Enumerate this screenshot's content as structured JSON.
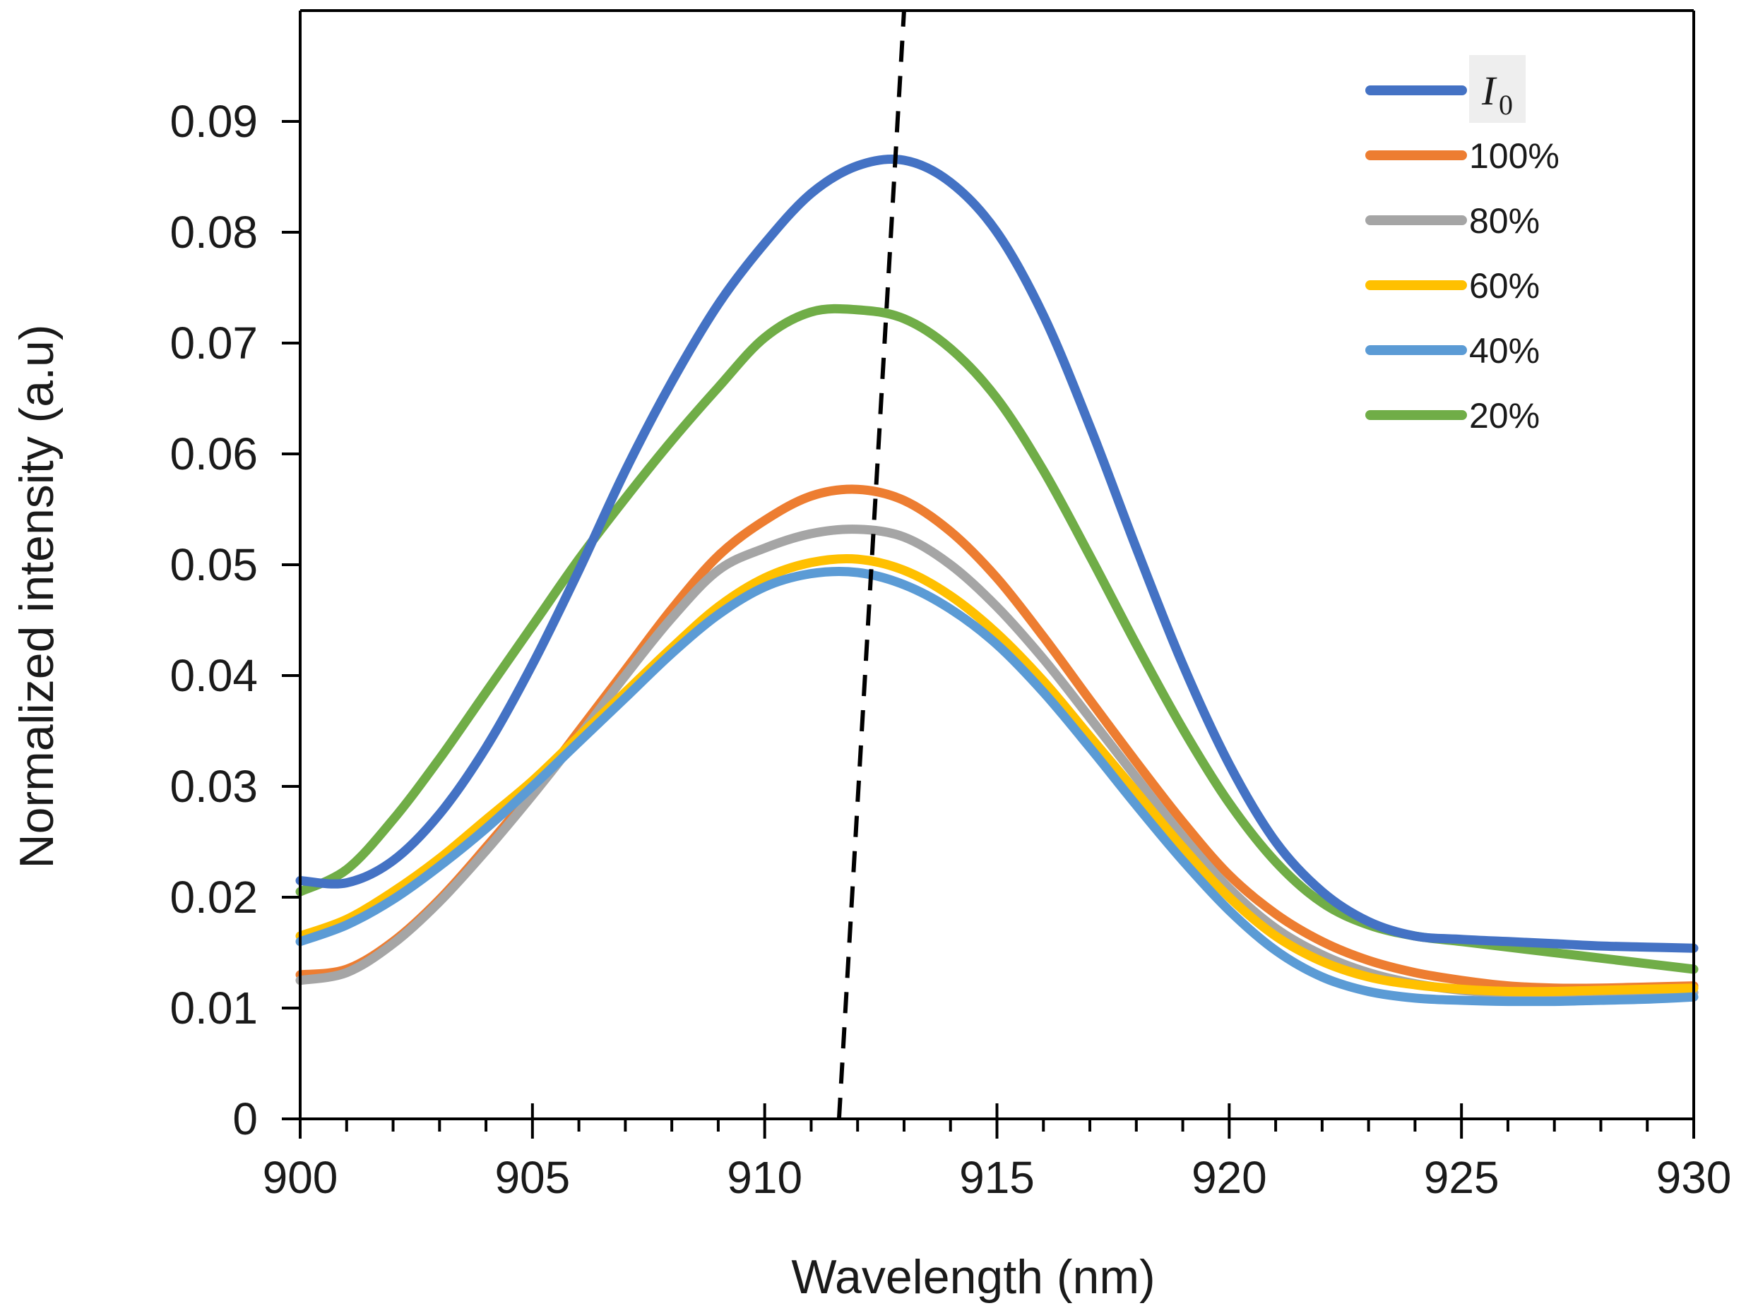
{
  "chart_data": {
    "type": "line",
    "title": "",
    "xlabel": "Wavelength (nm)",
    "ylabel": "Normalized intensity (a.u)",
    "xlim": [
      900,
      930
    ],
    "ylim": [
      0,
      0.1
    ],
    "x_ticks": [
      "900",
      "905",
      "910",
      "915",
      "920",
      "925",
      "930"
    ],
    "y_ticks": [
      "0",
      "0.01",
      "0.02",
      "0.03",
      "0.04",
      "0.05",
      "0.06",
      "0.07",
      "0.08",
      "0.09"
    ],
    "grid": false,
    "legend_position": "top-right",
    "series": [
      {
        "name": "I0",
        "label_main": "I",
        "label_sub": "0",
        "color": "#4472C4",
        "x": [
          900,
          901,
          902,
          903,
          904,
          905,
          906,
          907,
          908,
          909,
          910,
          911,
          912,
          913,
          914,
          915,
          916,
          917,
          918,
          919,
          920,
          921,
          922,
          923,
          924,
          925,
          926,
          927,
          928,
          929,
          930
        ],
        "y": [
          0.0215,
          0.0213,
          0.0233,
          0.0275,
          0.0335,
          0.041,
          0.0495,
          0.0585,
          0.0665,
          0.0735,
          0.079,
          0.0835,
          0.086,
          0.0865,
          0.0845,
          0.08,
          0.0725,
          0.0625,
          0.0515,
          0.041,
          0.032,
          0.025,
          0.0205,
          0.0178,
          0.0165,
          0.0162,
          0.016,
          0.0158,
          0.0156,
          0.0155,
          0.0154
        ]
      },
      {
        "name": "100%",
        "color": "#ED7D31",
        "x": [
          900,
          901,
          902,
          903,
          904,
          905,
          906,
          907,
          908,
          909,
          910,
          911,
          912,
          913,
          914,
          915,
          916,
          917,
          918,
          919,
          920,
          921,
          922,
          923,
          924,
          925,
          926,
          927,
          928,
          929,
          930
        ],
        "y": [
          0.013,
          0.0135,
          0.016,
          0.0198,
          0.0245,
          0.0295,
          0.035,
          0.0405,
          0.046,
          0.0508,
          0.054,
          0.0562,
          0.0568,
          0.0558,
          0.053,
          0.0488,
          0.0435,
          0.0378,
          0.0322,
          0.0268,
          0.022,
          0.0185,
          0.016,
          0.0143,
          0.0132,
          0.0125,
          0.012,
          0.0118,
          0.0118,
          0.0119,
          0.012
        ]
      },
      {
        "name": "80%",
        "color": "#A5A5A5",
        "x": [
          900,
          901,
          902,
          903,
          904,
          905,
          906,
          907,
          908,
          909,
          910,
          911,
          912,
          913,
          914,
          915,
          916,
          917,
          918,
          919,
          920,
          921,
          922,
          923,
          924,
          925,
          926,
          927,
          928,
          929,
          930
        ],
        "y": [
          0.0125,
          0.0132,
          0.0158,
          0.0196,
          0.0242,
          0.0292,
          0.0345,
          0.04,
          0.0452,
          0.0495,
          0.0515,
          0.0528,
          0.0532,
          0.0525,
          0.05,
          0.0462,
          0.0415,
          0.0362,
          0.0308,
          0.0255,
          0.0208,
          0.0172,
          0.0148,
          0.0132,
          0.0122,
          0.0116,
          0.0113,
          0.0112,
          0.0112,
          0.0113,
          0.0114
        ]
      },
      {
        "name": "60%",
        "color": "#FFC000",
        "x": [
          900,
          901,
          902,
          903,
          904,
          905,
          906,
          907,
          908,
          909,
          910,
          911,
          912,
          913,
          914,
          915,
          916,
          917,
          918,
          919,
          920,
          921,
          922,
          923,
          924,
          925,
          926,
          927,
          928,
          929,
          930
        ],
        "y": [
          0.0165,
          0.018,
          0.0205,
          0.0235,
          0.027,
          0.0305,
          0.0345,
          0.0385,
          0.0425,
          0.0462,
          0.0488,
          0.0502,
          0.0505,
          0.0495,
          0.0472,
          0.0438,
          0.0395,
          0.0345,
          0.0295,
          0.0245,
          0.02,
          0.0165,
          0.0142,
          0.0128,
          0.0121,
          0.0117,
          0.0115,
          0.0115,
          0.0116,
          0.0117,
          0.0118
        ]
      },
      {
        "name": "40%",
        "color": "#5B9BD5",
        "x": [
          900,
          901,
          902,
          903,
          904,
          905,
          906,
          907,
          908,
          909,
          910,
          911,
          912,
          913,
          914,
          915,
          916,
          917,
          918,
          919,
          920,
          921,
          922,
          923,
          924,
          925,
          926,
          927,
          928,
          929,
          930
        ],
        "y": [
          0.016,
          0.0175,
          0.0198,
          0.0228,
          0.0262,
          0.03,
          0.034,
          0.038,
          0.042,
          0.0455,
          0.048,
          0.0492,
          0.0493,
          0.0482,
          0.046,
          0.0428,
          0.0385,
          0.0335,
          0.0283,
          0.0233,
          0.0188,
          0.0152,
          0.0128,
          0.0115,
          0.0109,
          0.0107,
          0.0106,
          0.0106,
          0.0107,
          0.0108,
          0.011
        ]
      },
      {
        "name": "20%",
        "color": "#70AD47",
        "x": [
          900,
          901,
          902,
          903,
          904,
          905,
          906,
          907,
          908,
          909,
          910,
          911,
          912,
          913,
          914,
          915,
          916,
          917,
          918,
          919,
          920,
          921,
          922,
          923,
          924,
          925,
          926,
          927,
          928,
          929,
          930
        ],
        "y": [
          0.0205,
          0.0225,
          0.027,
          0.0325,
          0.0385,
          0.0445,
          0.0505,
          0.056,
          0.0612,
          0.066,
          0.0705,
          0.0728,
          0.073,
          0.0722,
          0.0695,
          0.065,
          0.0585,
          0.0508,
          0.0428,
          0.0352,
          0.0285,
          0.0232,
          0.0195,
          0.0175,
          0.0165,
          0.016,
          0.0155,
          0.015,
          0.0145,
          0.014,
          0.0135
        ]
      }
    ],
    "annotations": [
      {
        "type": "dashed-line",
        "color": "#000000",
        "x": [
          911.6,
          913.0
        ],
        "y": [
          0.0,
          0.1
        ]
      }
    ]
  }
}
